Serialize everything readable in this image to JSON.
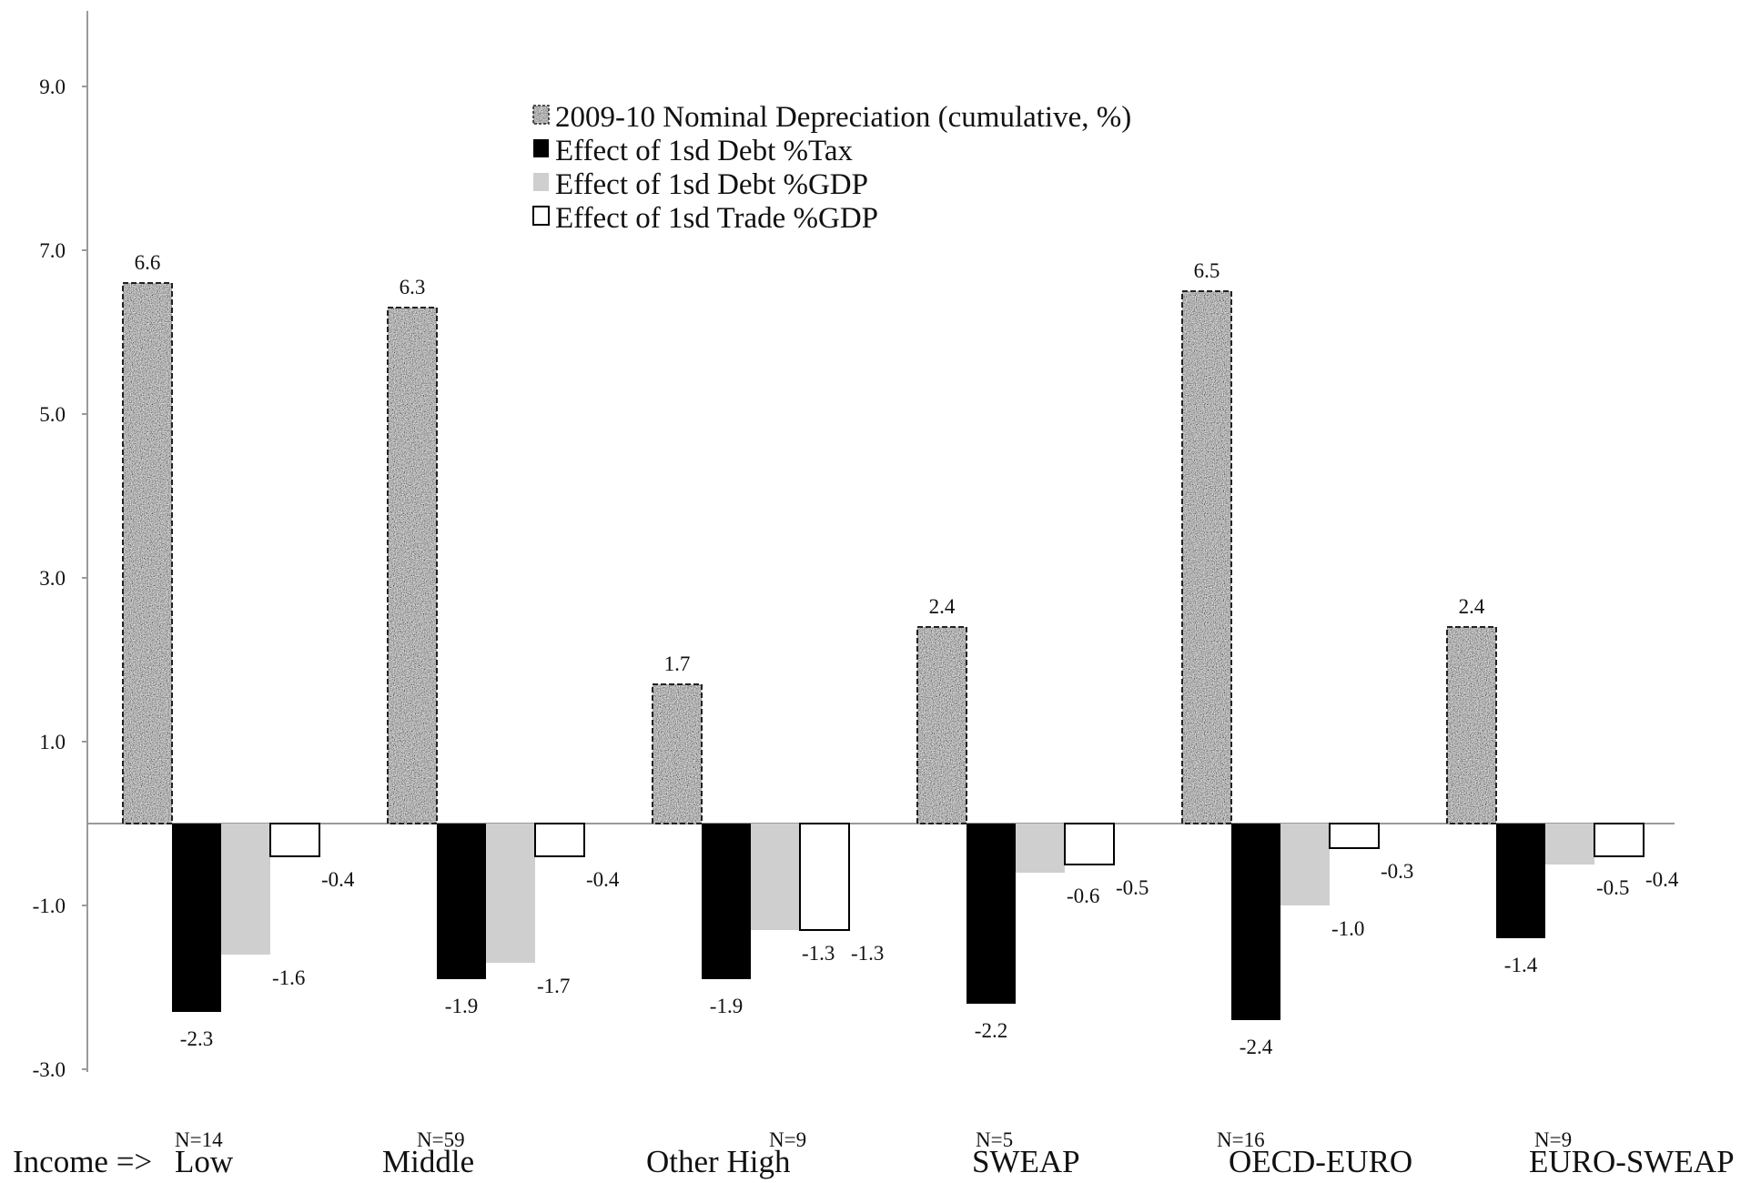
{
  "chart_data": {
    "type": "bar",
    "x_prefix": "Income =>",
    "categories": [
      "Low",
      "Middle",
      "Other High",
      "SWEAP",
      "OECD-EURO",
      "EURO-SWEAP"
    ],
    "sample_sizes": [
      "N=14",
      "N=59",
      "N=9",
      "N=5",
      "N=16",
      "N=9"
    ],
    "series": [
      {
        "name": "2009-10 Nominal Depreciation (cumulative, %)",
        "values": [
          6.6,
          6.3,
          1.7,
          2.4,
          6.5,
          2.4
        ],
        "labels": [
          "6.6",
          "6.3",
          "1.7",
          "2.4",
          "6.5",
          "2.4"
        ],
        "fill": "texture-gray"
      },
      {
        "name": "Effect of 1sd Debt %Tax",
        "values": [
          -2.3,
          -1.9,
          -1.9,
          -2.2,
          -2.4,
          -1.4
        ],
        "labels": [
          "-2.3",
          "-1.9",
          "-1.9",
          "-2.2",
          "-2.4",
          "-1.4"
        ],
        "fill": "#000000"
      },
      {
        "name": "Effect of 1sd Debt %GDP",
        "values": [
          -1.6,
          -1.7,
          -1.3,
          -0.6,
          -1.0,
          -0.5
        ],
        "labels": [
          "-1.6",
          "-1.7",
          "-1.3",
          "-0.6",
          "-1.0",
          "-0.5"
        ],
        "fill": "#cfcfcf"
      },
      {
        "name": "Effect of 1sd Trade %GDP",
        "values": [
          -0.4,
          -0.4,
          -1.3,
          -0.5,
          -0.3,
          -0.4
        ],
        "labels": [
          "-0.4",
          "-0.4",
          "-1.3",
          "-0.5",
          "-0.3",
          "-0.4"
        ],
        "fill": "#ffffff"
      }
    ],
    "y_ticks": [
      9.0,
      7.0,
      5.0,
      3.0,
      1.0,
      -1.0,
      -3.0
    ],
    "y_tick_labels": [
      "9.0",
      "7.0",
      "5.0",
      "3.0",
      "1.0",
      "-1.0",
      "-3.0"
    ],
    "ylim": [
      -3.0,
      10.0
    ],
    "grid": false,
    "legend_position": "top-center",
    "title": "",
    "xlabel": "",
    "ylabel": ""
  }
}
